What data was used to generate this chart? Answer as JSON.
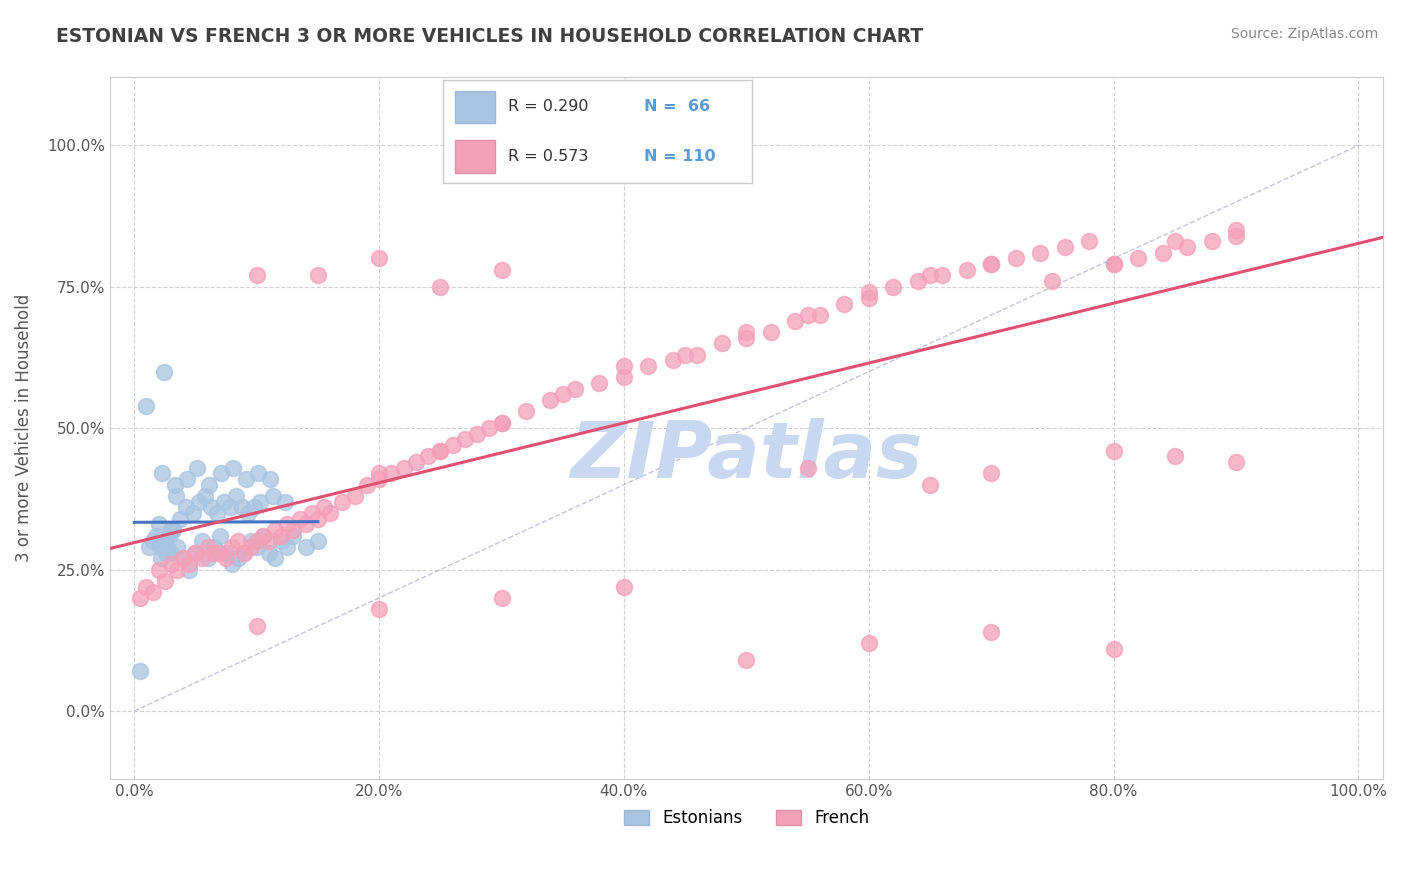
{
  "title": "ESTONIAN VS FRENCH 3 OR MORE VEHICLES IN HOUSEHOLD CORRELATION CHART",
  "source_text": "Source: ZipAtlas.com",
  "ylabel": "3 or more Vehicles in Household",
  "legend_R_estonian": "R = 0.290",
  "legend_N_estonian": "N = 66",
  "legend_R_french": "R = 0.573",
  "legend_N_french": "N = 110",
  "estonian_color": "#a8c4e0",
  "french_color": "#f4a0b8",
  "estonian_line_color": "#4472c4",
  "french_line_color": "#e05070",
  "watermark_color": "#c8d8f0",
  "background_color": "#ffffff",
  "grid_color": "#c8c8c8",
  "title_color": "#404040",
  "estonian_x": [
    0.5,
    1.0,
    1.2,
    1.5,
    1.8,
    2.0,
    2.1,
    2.2,
    2.3,
    2.4,
    2.5,
    2.6,
    2.7,
    2.8,
    3.0,
    3.0,
    3.1,
    3.2,
    3.3,
    3.4,
    3.5,
    3.7,
    4.0,
    4.2,
    4.3,
    4.5,
    4.8,
    5.0,
    5.1,
    5.3,
    5.5,
    5.8,
    6.0,
    6.1,
    6.3,
    6.5,
    6.8,
    7.0,
    7.1,
    7.3,
    7.5,
    7.8,
    8.0,
    8.1,
    8.3,
    8.5,
    8.8,
    9.0,
    9.1,
    9.3,
    9.5,
    9.8,
    10.0,
    10.1,
    10.3,
    10.5,
    11.0,
    11.1,
    11.3,
    11.5,
    12.0,
    12.3,
    12.5,
    13.0,
    14.0,
    15.0
  ],
  "estonian_y": [
    7.0,
    54.0,
    29.0,
    30.0,
    31.0,
    33.0,
    29.0,
    27.0,
    42.0,
    60.0,
    30.0,
    28.0,
    29.0,
    31.0,
    28.0,
    32.0,
    32.0,
    32.0,
    40.0,
    38.0,
    29.0,
    34.0,
    27.0,
    36.0,
    41.0,
    25.0,
    35.0,
    28.0,
    43.0,
    37.0,
    30.0,
    38.0,
    27.0,
    40.0,
    36.0,
    29.0,
    35.0,
    31.0,
    42.0,
    37.0,
    28.0,
    36.0,
    26.0,
    43.0,
    38.0,
    27.0,
    36.0,
    28.0,
    41.0,
    35.0,
    30.0,
    36.0,
    29.0,
    42.0,
    37.0,
    31.0,
    28.0,
    41.0,
    38.0,
    27.0,
    30.0,
    37.0,
    29.0,
    31.0,
    29.0,
    30.0
  ],
  "french_x": [
    0.5,
    1.0,
    1.5,
    2.0,
    2.5,
    3.0,
    3.5,
    4.0,
    4.5,
    5.0,
    5.5,
    6.0,
    6.5,
    7.0,
    7.5,
    8.0,
    8.5,
    9.0,
    9.5,
    10.0,
    10.5,
    11.0,
    11.5,
    12.0,
    12.5,
    13.0,
    13.5,
    14.0,
    14.5,
    15.0,
    15.5,
    16.0,
    17.0,
    18.0,
    19.0,
    20.0,
    21.0,
    22.0,
    23.0,
    24.0,
    25.0,
    26.0,
    27.0,
    28.0,
    29.0,
    30.0,
    32.0,
    34.0,
    36.0,
    38.0,
    40.0,
    42.0,
    44.0,
    46.0,
    48.0,
    50.0,
    52.0,
    54.0,
    56.0,
    58.0,
    60.0,
    62.0,
    64.0,
    66.0,
    68.0,
    70.0,
    72.0,
    74.0,
    76.0,
    78.0,
    80.0,
    82.0,
    84.0,
    86.0,
    88.0,
    90.0,
    20.0,
    25.0,
    30.0,
    35.0,
    40.0,
    45.0,
    50.0,
    55.0,
    60.0,
    65.0,
    70.0,
    75.0,
    80.0,
    85.0,
    90.0,
    15.0,
    10.0,
    20.0,
    30.0,
    40.0,
    50.0,
    60.0,
    70.0,
    80.0,
    55.0,
    65.0,
    85.0,
    90.0,
    70.0,
    80.0,
    10.0,
    20.0,
    25.0,
    30.0
  ],
  "french_y": [
    20.0,
    22.0,
    21.0,
    25.0,
    23.0,
    26.0,
    25.0,
    27.0,
    26.0,
    28.0,
    27.0,
    29.0,
    28.0,
    28.0,
    27.0,
    29.0,
    30.0,
    28.0,
    29.0,
    30.0,
    31.0,
    30.0,
    32.0,
    31.0,
    33.0,
    32.0,
    34.0,
    33.0,
    35.0,
    34.0,
    36.0,
    35.0,
    37.0,
    38.0,
    40.0,
    41.0,
    42.0,
    43.0,
    44.0,
    45.0,
    46.0,
    47.0,
    48.0,
    49.0,
    50.0,
    51.0,
    53.0,
    55.0,
    57.0,
    58.0,
    59.0,
    61.0,
    62.0,
    63.0,
    65.0,
    66.0,
    67.0,
    69.0,
    70.0,
    72.0,
    73.0,
    75.0,
    76.0,
    77.0,
    78.0,
    79.0,
    80.0,
    81.0,
    82.0,
    83.0,
    79.0,
    80.0,
    81.0,
    82.0,
    83.0,
    84.0,
    42.0,
    46.0,
    51.0,
    56.0,
    61.0,
    63.0,
    67.0,
    70.0,
    74.0,
    77.0,
    79.0,
    76.0,
    79.0,
    83.0,
    85.0,
    77.0,
    15.0,
    18.0,
    20.0,
    22.0,
    9.0,
    12.0,
    14.0,
    11.0,
    43.0,
    40.0,
    45.0,
    44.0,
    42.0,
    46.0,
    77.0,
    80.0,
    75.0,
    78.0
  ]
}
